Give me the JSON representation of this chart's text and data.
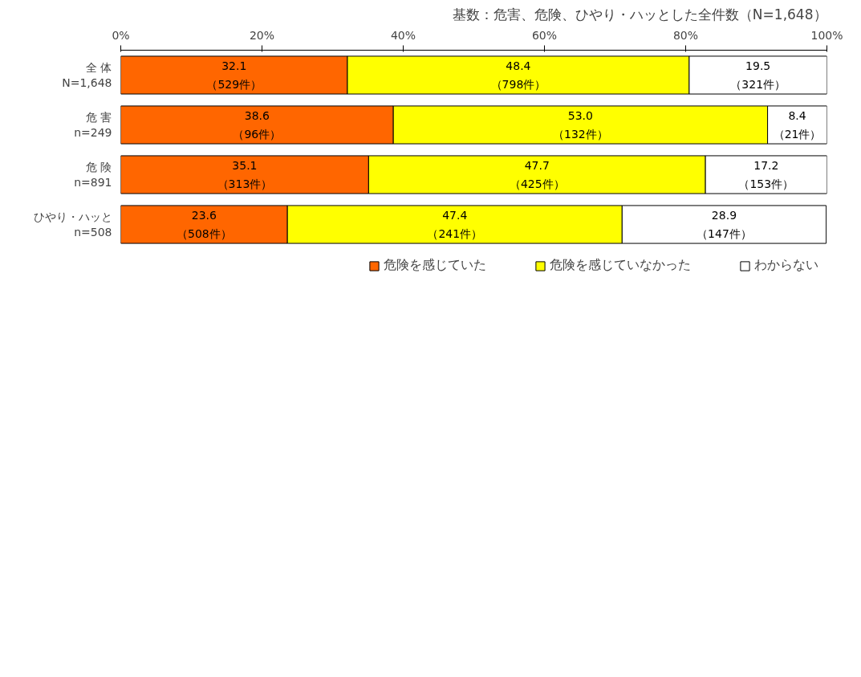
{
  "chart_data": {
    "type": "bar",
    "orientation": "horizontal",
    "stacked": true,
    "title": "基数：危害、危険、ひやり・ハッとした全件数（N=1,648）",
    "categories": [
      "全 体\nN=1,648",
      "危 害\nn=249",
      "危 険\nn=891",
      "ひやり・ハッと\nn=508"
    ],
    "series": [
      {
        "name": "危険を感じていた",
        "color": "#ff6600",
        "values": [
          32.1,
          38.6,
          35.1,
          23.6
        ],
        "value_labels": [
          "32.1\n（529件）",
          "38.6\n（96件）",
          "35.1\n（313件）",
          "23.6\n（508件）"
        ]
      },
      {
        "name": "危険を感じていなかった",
        "color": "#ffff00",
        "values": [
          48.4,
          53.0,
          47.7,
          47.4
        ],
        "value_labels": [
          "48.4\n（798件）",
          "53.0\n（132件）",
          "47.7\n（425件）",
          "47.4\n（241件）"
        ]
      },
      {
        "name": "わからない",
        "color": "#ffffff",
        "values": [
          19.5,
          8.4,
          17.2,
          28.9
        ],
        "value_labels": [
          "19.5\n（321件）",
          "8.4\n（21件）",
          "17.2\n（153件）",
          "28.9\n（147件）"
        ]
      }
    ],
    "xlim": [
      0,
      100
    ],
    "xticks": [
      {
        "value": 0,
        "label": "0%"
      },
      {
        "value": 20,
        "label": "20%"
      },
      {
        "value": 40,
        "label": "40%"
      },
      {
        "value": 60,
        "label": "60%"
      },
      {
        "value": 80,
        "label": "80%"
      },
      {
        "value": 100,
        "label": "100%"
      }
    ],
    "grid": false,
    "legend": "bottom"
  }
}
